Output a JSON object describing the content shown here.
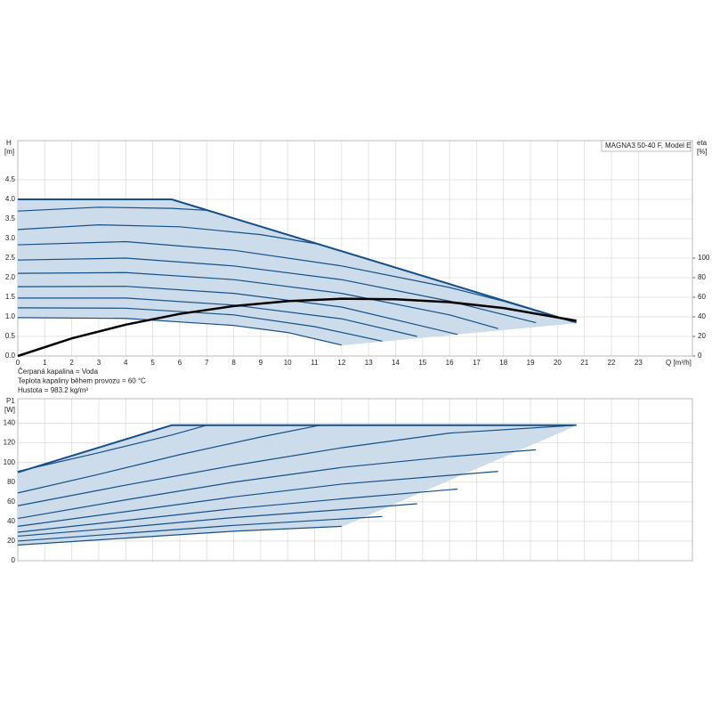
{
  "chart_data": [
    {
      "type": "line",
      "title": "MAGNA3 50-40 F, Model E",
      "y_label": "H",
      "y_unit": "[m]",
      "y2_label": "eta",
      "y2_unit": "[%]",
      "x_label": "Q [m³/h]",
      "notes": [
        "Čerpaná kapalina = Voda",
        "Teplota kapaliny během provozu = 60 °C",
        "Hustota = 983.2 kg/m³"
      ],
      "xlim": [
        0,
        25
      ],
      "xticks": [
        0,
        1,
        2,
        3,
        4,
        5,
        6,
        7,
        8,
        9,
        10,
        11,
        12,
        13,
        14,
        15,
        16,
        17,
        18,
        19,
        20,
        21,
        22,
        23
      ],
      "ylim": [
        0,
        5.5
      ],
      "yticks": [
        {
          "value": 0,
          "label": "0.0"
        },
        {
          "value": 0.5,
          "label": "0.5"
        },
        {
          "value": 1,
          "label": "1.0"
        },
        {
          "value": 1.5,
          "label": "1.5"
        },
        {
          "value": 2,
          "label": "2.0"
        },
        {
          "value": 2.5,
          "label": "2.5"
        },
        {
          "value": 3,
          "label": "3.0"
        },
        {
          "value": 3.5,
          "label": "3.5"
        },
        {
          "value": 4,
          "label": "4.0"
        },
        {
          "value": 4.5,
          "label": "4.5"
        }
      ],
      "y2lim": [
        0,
        220
      ],
      "y2ticks": [
        0,
        20,
        40,
        60,
        80,
        100
      ],
      "grid": true,
      "fill_color": "#cddcea",
      "series": [
        {
          "color": "#15508a",
          "line_width": 2,
          "x": [
            0,
            5.7,
            20.7
          ],
          "values": [
            4.0,
            4.0,
            0.85
          ]
        },
        {
          "color": "#cddcea",
          "line_width": 1,
          "x": [
            12,
            20.7
          ],
          "values": [
            0.28,
            0.85
          ]
        },
        {
          "color": "#15508a",
          "line_width": 1.2,
          "x": [
            0,
            4,
            8,
            10,
            12
          ],
          "values": [
            0.98,
            0.96,
            0.78,
            0.6,
            0.28
          ]
        },
        {
          "color": "#15508a",
          "line_width": 1.2,
          "x": [
            0,
            4,
            8,
            11,
            13.5
          ],
          "values": [
            1.23,
            1.22,
            1.05,
            0.75,
            0.38
          ]
        },
        {
          "color": "#15508a",
          "line_width": 1.2,
          "x": [
            0,
            4,
            8,
            12,
            14.8
          ],
          "values": [
            1.48,
            1.48,
            1.3,
            0.95,
            0.5
          ]
        },
        {
          "color": "#15508a",
          "line_width": 1.2,
          "x": [
            0,
            4,
            8,
            12,
            16.3
          ],
          "values": [
            1.77,
            1.78,
            1.6,
            1.25,
            0.55
          ]
        },
        {
          "color": "#15508a",
          "line_width": 1.2,
          "x": [
            0,
            4,
            8,
            12,
            16,
            17.8
          ],
          "values": [
            2.11,
            2.13,
            1.95,
            1.6,
            1.05,
            0.7
          ]
        },
        {
          "color": "#15508a",
          "line_width": 1.2,
          "x": [
            0,
            4,
            8,
            12,
            16,
            19.2
          ],
          "values": [
            2.45,
            2.5,
            2.3,
            1.95,
            1.4,
            0.85
          ]
        },
        {
          "color": "#15508a",
          "line_width": 1.2,
          "x": [
            0,
            4,
            8,
            12,
            16,
            18,
            20.7
          ],
          "values": [
            2.84,
            2.92,
            2.7,
            2.3,
            1.75,
            1.4,
            0.85
          ]
        },
        {
          "color": "#15508a",
          "line_width": 1.2,
          "x": [
            0,
            3,
            6,
            9,
            11.2
          ],
          "values": [
            3.23,
            3.35,
            3.3,
            3.1,
            2.85
          ]
        },
        {
          "color": "#15508a",
          "line_width": 1.2,
          "x": [
            0,
            3,
            5.7,
            7
          ],
          "values": [
            3.7,
            3.8,
            3.77,
            3.72
          ]
        },
        {
          "color": "#000000",
          "line_width": 2.5,
          "axis": "y2",
          "x": [
            0,
            2,
            4,
            6,
            8,
            10,
            12,
            14,
            16,
            18,
            20.7
          ],
          "values": [
            0,
            18,
            32,
            43,
            51,
            56,
            58.5,
            58,
            55,
            49,
            36
          ]
        }
      ]
    },
    {
      "type": "line",
      "y_label": "P1",
      "y_unit": "[W]",
      "xlim": [
        0,
        25
      ],
      "xticks": [
        0,
        1,
        2,
        3,
        4,
        5,
        6,
        7,
        8,
        9,
        10,
        11,
        12,
        13,
        14,
        15,
        16,
        17,
        18,
        19,
        20,
        21,
        22,
        23
      ],
      "ylim": [
        0,
        165
      ],
      "yticks": [
        0,
        20,
        40,
        60,
        80,
        100,
        120,
        140
      ],
      "grid": true,
      "fill_color": "#cddcea",
      "series": [
        {
          "color": "#15508a",
          "line_width": 2,
          "x": [
            0,
            5.7,
            20.7
          ],
          "values": [
            90,
            138,
            138
          ]
        },
        {
          "color": "#cddcea",
          "line_width": 1,
          "x": [
            12,
            20.7
          ],
          "values": [
            35,
            138
          ]
        },
        {
          "color": "#15508a",
          "line_width": 1.2,
          "x": [
            0,
            4,
            8,
            12
          ],
          "values": [
            16,
            23,
            30,
            35
          ]
        },
        {
          "color": "#15508a",
          "line_width": 1.2,
          "x": [
            0,
            4,
            8,
            13.5
          ],
          "values": [
            20,
            28,
            36,
            45
          ]
        },
        {
          "color": "#15508a",
          "line_width": 1.2,
          "x": [
            0,
            4,
            8,
            12,
            14.8
          ],
          "values": [
            25,
            34,
            44,
            52,
            58
          ]
        },
        {
          "color": "#15508a",
          "line_width": 1.2,
          "x": [
            0,
            4,
            8,
            12,
            16.3
          ],
          "values": [
            29,
            41,
            53,
            63,
            73
          ]
        },
        {
          "color": "#15508a",
          "line_width": 1.2,
          "x": [
            0,
            4,
            8,
            12,
            17.8
          ],
          "values": [
            35,
            50,
            65,
            78,
            91
          ]
        },
        {
          "color": "#15508a",
          "line_width": 1.2,
          "x": [
            0,
            4,
            8,
            12,
            16,
            19.2
          ],
          "values": [
            43,
            62,
            80,
            95,
            106,
            113
          ]
        },
        {
          "color": "#15508a",
          "line_width": 1.2,
          "x": [
            0,
            4,
            8,
            12,
            16,
            20.7
          ],
          "values": [
            56,
            77,
            97,
            115,
            130,
            138
          ]
        },
        {
          "color": "#15508a",
          "line_width": 1.2,
          "x": [
            0,
            3,
            6,
            9,
            11.2
          ],
          "values": [
            69,
            88,
            108,
            126,
            138
          ]
        },
        {
          "color": "#15508a",
          "line_width": 1.2,
          "x": [
            0,
            3,
            5.7,
            7
          ],
          "values": [
            91,
            110,
            128,
            138
          ]
        }
      ]
    }
  ]
}
